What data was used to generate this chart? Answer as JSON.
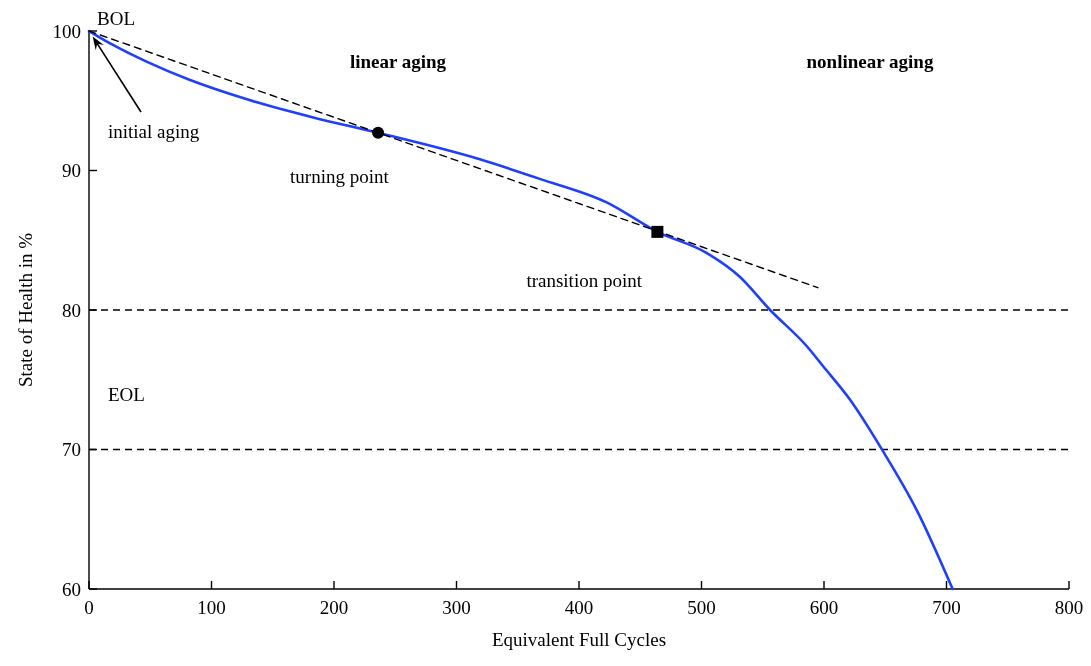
{
  "chart_data": {
    "type": "line",
    "xlabel": "Equivalent Full Cycles",
    "ylabel": "State of Health in %",
    "xlim": [
      0,
      800
    ],
    "xticks": [
      0,
      100,
      200,
      300,
      400,
      500,
      600,
      700,
      800
    ],
    "ylim": [
      60,
      100
    ],
    "yticks": [
      60,
      70,
      80,
      90,
      100
    ],
    "grid": false,
    "series": [
      {
        "color": "#1f3fff",
        "line_style": "solid",
        "marker": "none",
        "x": [
          0,
          19.6,
          47,
          82,
          129,
          183,
          236,
          319,
          368,
          423,
          464,
          504,
          531,
          556,
          586,
          599,
          621,
          648,
          676,
          705
        ],
        "values": [
          100,
          99.0,
          97.8,
          96.5,
          95.1,
          93.8,
          92.7,
          90.8,
          89.4,
          87.7,
          85.6,
          84.1,
          82.4,
          80,
          77.4,
          76.0,
          73.6,
          69.9,
          65.6,
          60
        ]
      },
      {
        "type": "line",
        "color": "#000000",
        "line_style": "dashed",
        "marker": "none",
        "x": [
          0,
          595
        ],
        "values": [
          100,
          81.6
        ]
      },
      {
        "type": "scatter",
        "color": "#000000",
        "marker": "circle",
        "x": [
          236
        ],
        "values": [
          92.7
        ]
      },
      {
        "type": "scatter",
        "color": "#000000",
        "marker": "square",
        "x": [
          464
        ],
        "values": [
          85.6
        ]
      }
    ],
    "ref_lines": [
      {
        "axis": "y",
        "value": 80,
        "color": "#000000",
        "line_style": "dashed"
      },
      {
        "axis": "y",
        "value": 70,
        "color": "#000000",
        "line_style": "dashed"
      }
    ],
    "annotations": [
      {
        "text": "BOL",
        "x": 0,
        "y": 100
      },
      "linear aging",
      "nonlinear aging",
      {
        "text": "initial aging",
        "x": 3,
        "y": 99.6
      },
      {
        "text": "turning point",
        "x": 236,
        "y": 92.7
      },
      {
        "text": "transition point",
        "x": 464,
        "y": 85.6
      },
      "EOL"
    ]
  }
}
